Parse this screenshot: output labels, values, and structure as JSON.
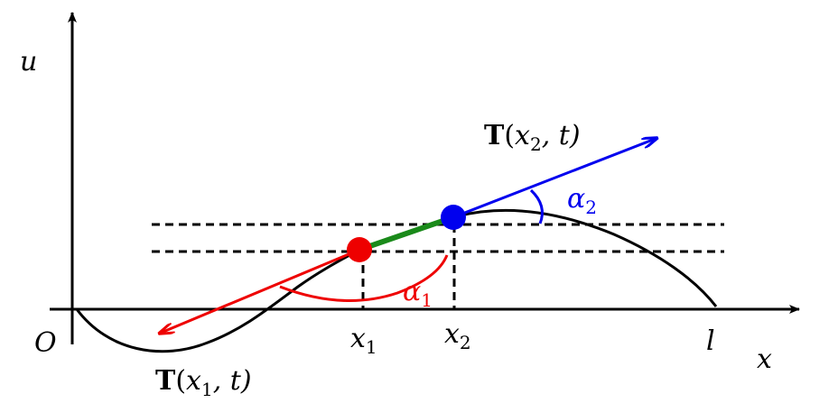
{
  "labels": {
    "u": "u",
    "origin": "O",
    "x": "x",
    "l": "l",
    "x1": {
      "base": "x",
      "sub": "1"
    },
    "x2": {
      "base": "x",
      "sub": "2"
    },
    "alpha1": {
      "base": "α",
      "sub": "1"
    },
    "alpha2": {
      "base": "α",
      "sub": "2"
    },
    "T1": {
      "bold": "T",
      "open": "(",
      "var": "x",
      "sub": "1",
      "rest": ", t)"
    },
    "T2": {
      "bold": "T",
      "open": "(",
      "var": "x",
      "sub": "2",
      "rest": ", t)"
    }
  }
}
